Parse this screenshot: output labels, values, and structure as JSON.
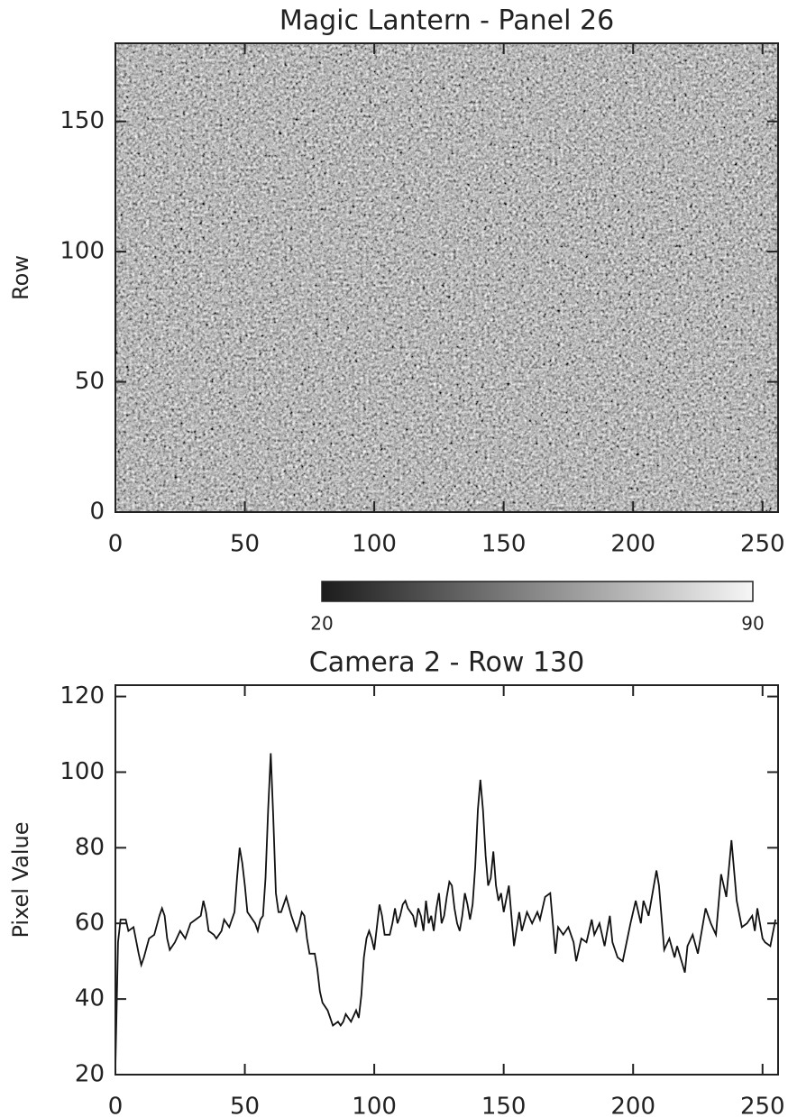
{
  "chart_data": [
    {
      "type": "image",
      "title": "Magic Lantern - Panel 26",
      "y_label": "Row",
      "xlim": [
        0,
        256
      ],
      "ylim": [
        0,
        180
      ],
      "xticks": [
        0,
        50,
        100,
        150,
        200,
        250
      ],
      "yticks": [
        0,
        50,
        100,
        150
      ],
      "clim": [
        20,
        90
      ],
      "cticks": [
        20,
        90
      ],
      "colormap": [
        "#1c1c1c",
        "#f6f6f6"
      ]
    },
    {
      "type": "line",
      "title": "Camera 2 - Row 130",
      "y_label": "Pixel Value",
      "xlim": [
        0,
        256
      ],
      "ylim": [
        20,
        123
      ],
      "xticks": [
        0,
        50,
        100,
        150,
        200,
        250
      ],
      "yticks": [
        20,
        40,
        60,
        80,
        100,
        120
      ],
      "color": "#111111",
      "x": [
        0,
        1,
        2,
        4,
        5,
        7,
        9,
        10,
        11,
        13,
        15,
        17,
        18,
        19,
        20,
        21,
        23,
        25,
        27,
        29,
        31,
        33,
        34,
        35,
        36,
        38,
        39,
        41,
        42,
        44,
        46,
        47,
        48,
        49,
        50,
        51,
        52,
        54,
        55,
        56,
        57,
        58,
        59,
        60,
        61,
        62,
        63,
        64,
        66,
        68,
        70,
        71,
        72,
        73,
        74,
        75,
        77,
        78,
        79,
        80,
        82,
        84,
        86,
        87,
        88,
        89,
        90,
        91,
        93,
        94,
        95,
        96,
        97,
        98,
        99,
        100,
        101,
        102,
        103,
        104,
        106,
        107,
        108,
        109,
        110,
        111,
        112,
        113,
        115,
        116,
        117,
        118,
        119,
        120,
        121,
        122,
        123,
        124,
        125,
        126,
        127,
        128,
        129,
        130,
        131,
        132,
        133,
        134,
        135,
        136,
        137,
        138,
        139,
        140,
        141,
        142,
        143,
        144,
        145,
        146,
        147,
        148,
        149,
        150,
        152,
        154,
        156,
        157,
        159,
        161,
        163,
        164,
        166,
        168,
        170,
        171,
        173,
        175,
        177,
        178,
        180,
        182,
        184,
        185,
        187,
        189,
        191,
        192,
        194,
        196,
        199,
        201,
        203,
        204,
        206,
        209,
        210,
        212,
        214,
        216,
        217,
        220,
        221,
        223,
        225,
        226,
        228,
        230,
        232,
        234,
        236,
        238,
        240,
        242,
        244,
        246,
        247,
        248,
        250,
        251,
        253,
        255
      ],
      "values": [
        22,
        55,
        61,
        61,
        58,
        59,
        52,
        49,
        51,
        56,
        57,
        62,
        64,
        62,
        56,
        53,
        55,
        58,
        56,
        60,
        61,
        62,
        66,
        63,
        58,
        57,
        56,
        58,
        61,
        59,
        63,
        72,
        80,
        76,
        70,
        63,
        62,
        60,
        58,
        61,
        62,
        72,
        90,
        105,
        88,
        68,
        63,
        63,
        67,
        62,
        58,
        60,
        63,
        62,
        56,
        52,
        52,
        48,
        42,
        39,
        37,
        33,
        34,
        33,
        34,
        36,
        35,
        34,
        37,
        35,
        41,
        51,
        56,
        58,
        56,
        53,
        59,
        65,
        62,
        57,
        57,
        60,
        64,
        60,
        62,
        65,
        66,
        64,
        62,
        59,
        64,
        62,
        58,
        66,
        60,
        62,
        58,
        64,
        68,
        60,
        62,
        67,
        71,
        70,
        64,
        60,
        58,
        62,
        68,
        65,
        61,
        65,
        75,
        90,
        98,
        90,
        78,
        70,
        72,
        79,
        70,
        66,
        68,
        63,
        70,
        54,
        63,
        58,
        63,
        60,
        63,
        61,
        67,
        68,
        52,
        59,
        57,
        59,
        55,
        50,
        56,
        55,
        61,
        57,
        60,
        54,
        62,
        55,
        51,
        50,
        60,
        66,
        60,
        66,
        62,
        74,
        70,
        53,
        56,
        51,
        54,
        47,
        54,
        57,
        52,
        56,
        64,
        60,
        57,
        73,
        67,
        82,
        66,
        59,
        60,
        62,
        58,
        64,
        56,
        55,
        54,
        61
      ]
    }
  ]
}
